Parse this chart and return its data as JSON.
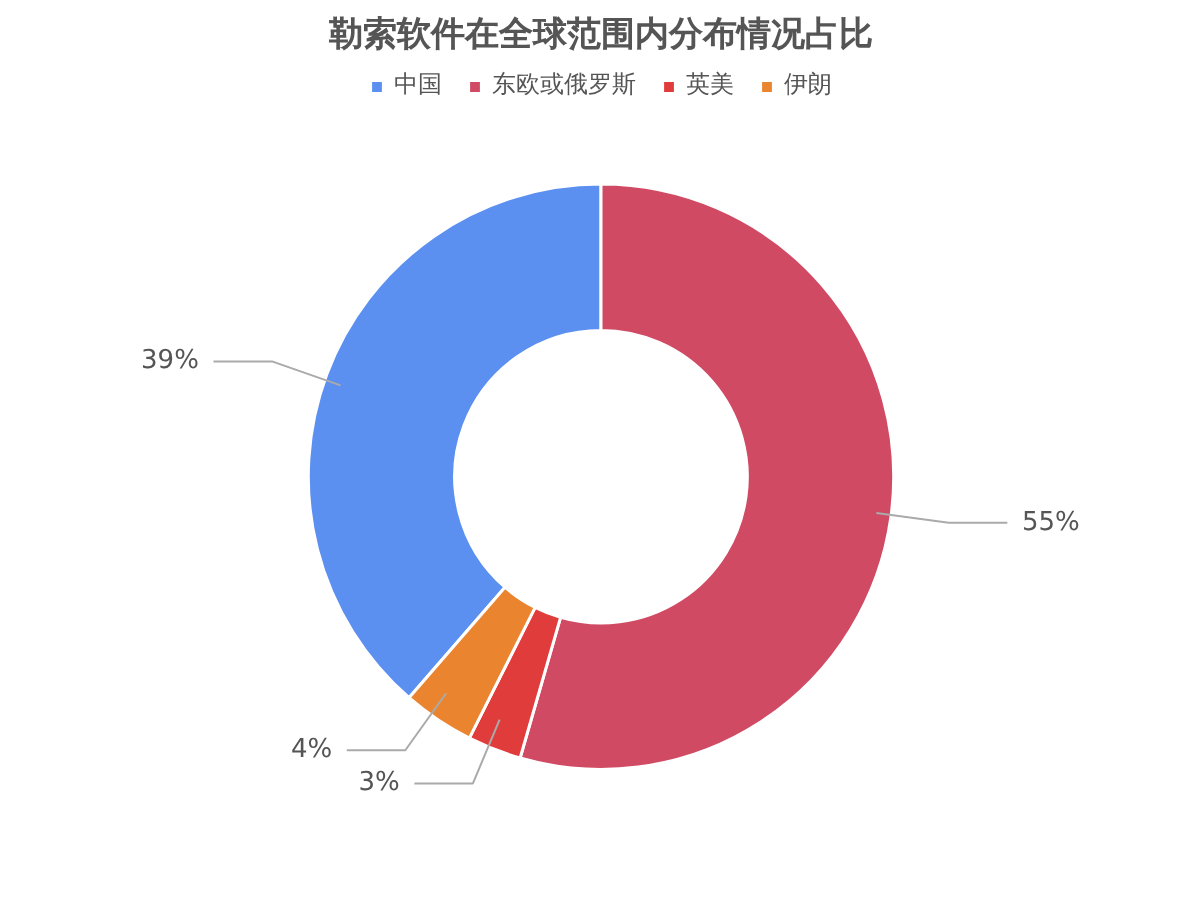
{
  "chart_data": {
    "type": "donut",
    "title": "勒索软件在全球范围内分布情况占比",
    "categories": [
      "中国",
      "东欧或俄罗斯",
      "英美",
      "伊朗"
    ],
    "values": [
      39,
      55,
      3,
      4
    ],
    "colors": [
      "#5b8ff0",
      "#d04a63",
      "#e03c3c",
      "#ea842f"
    ],
    "value_labels": [
      "39%",
      "55%",
      "3%",
      "4%"
    ],
    "legend": "top"
  }
}
